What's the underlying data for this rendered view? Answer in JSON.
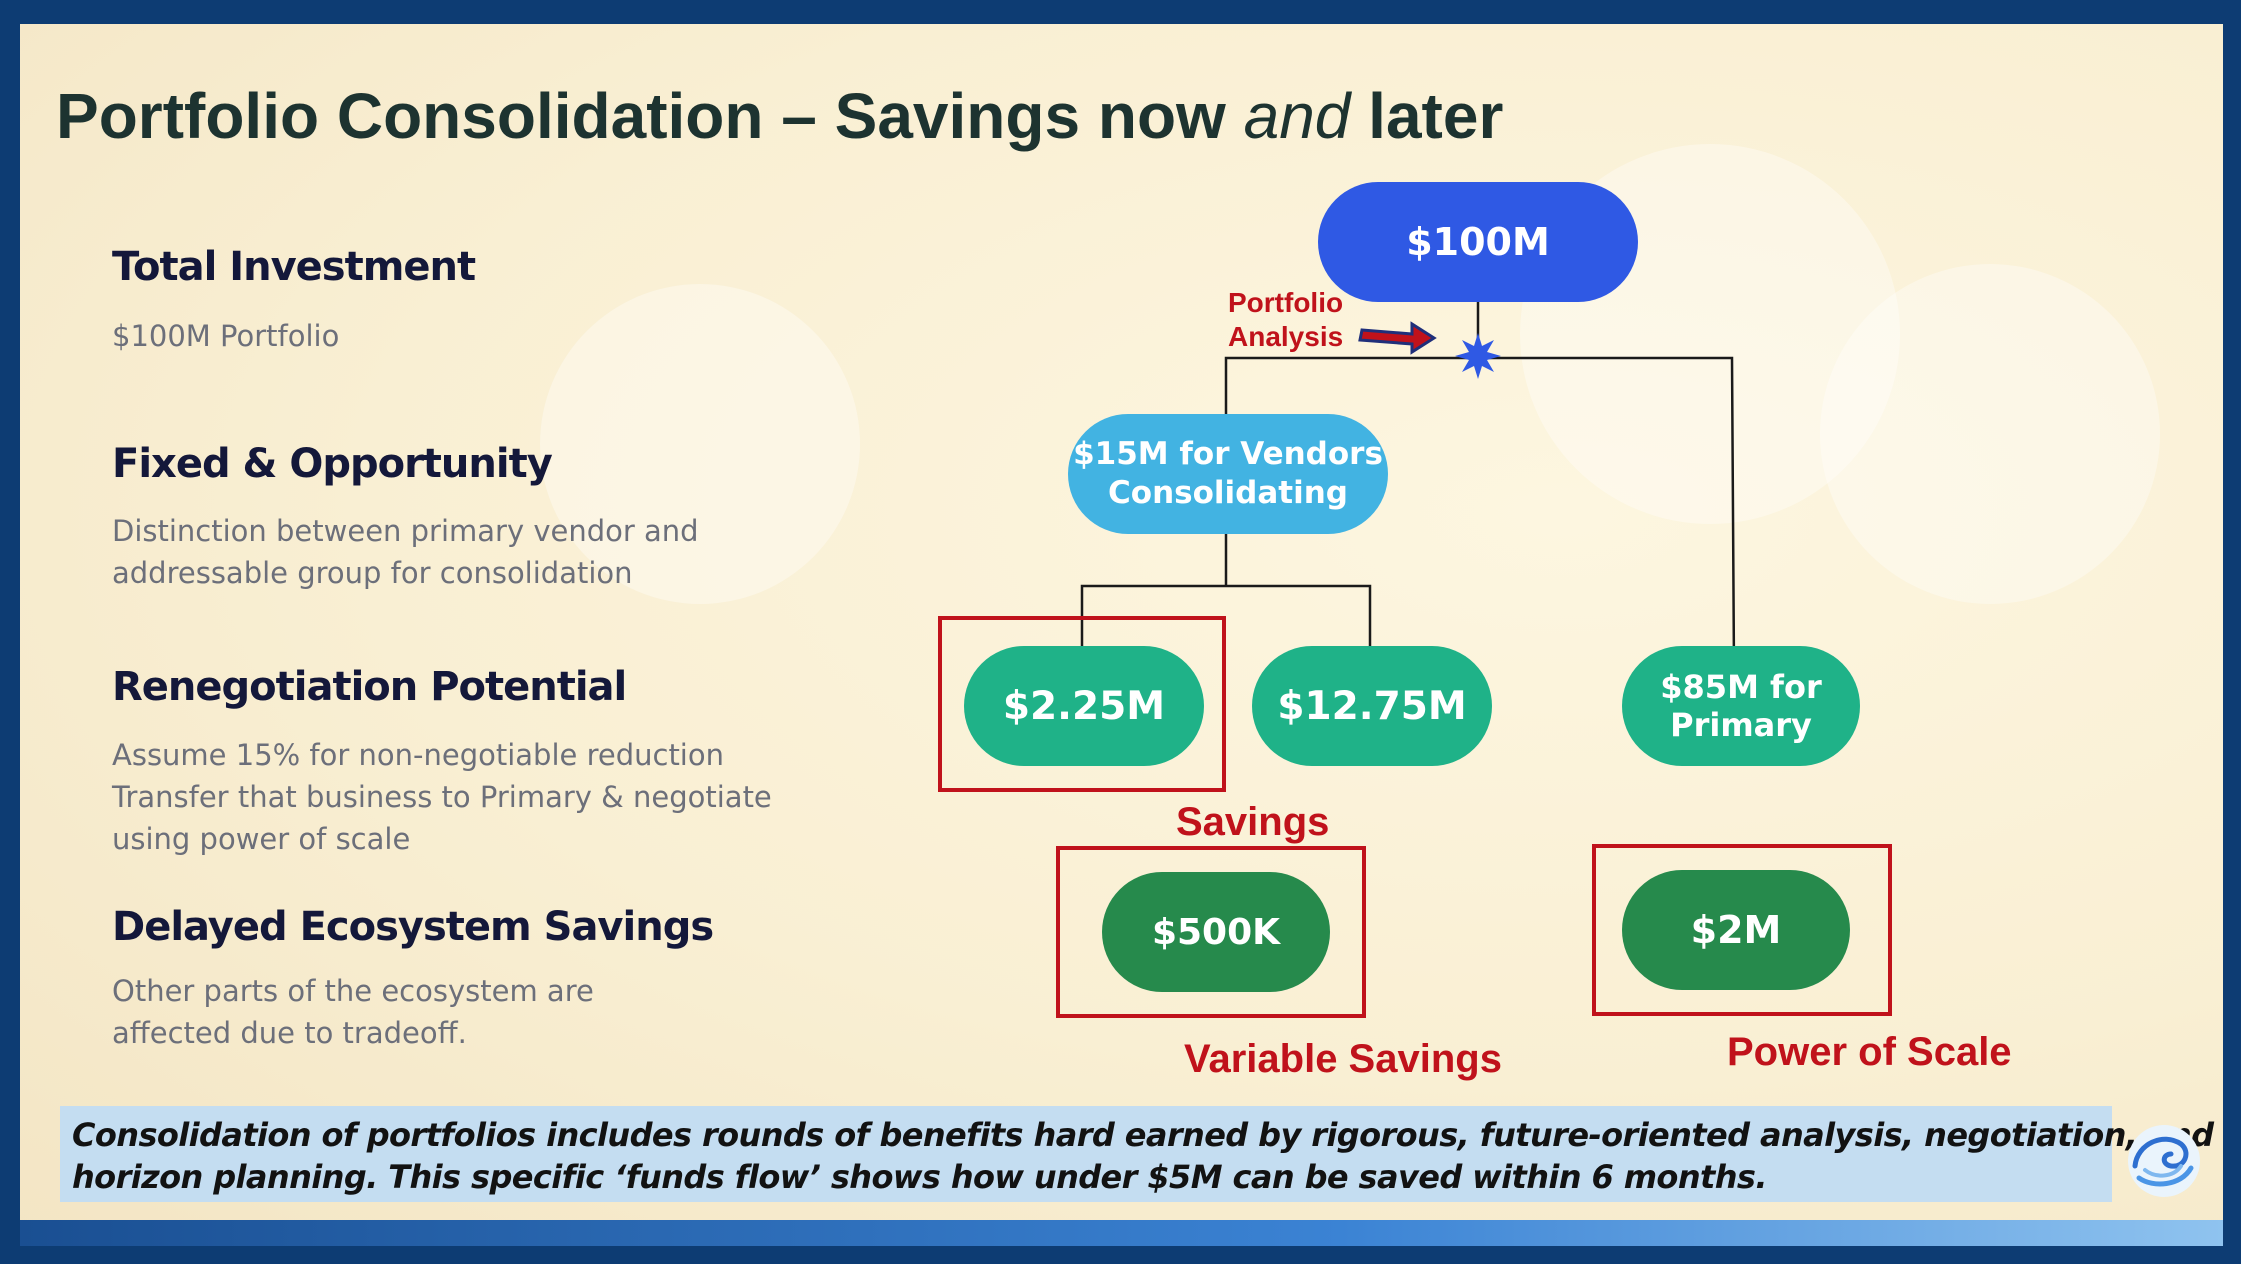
{
  "title": {
    "main": "Portfolio Consolidation – Savings now ",
    "emphasis": "and",
    "tail": " later"
  },
  "sections": [
    {
      "heading": "Total Investment",
      "lines": [
        "$100M Portfolio"
      ]
    },
    {
      "heading": "Fixed & Opportunity",
      "lines": [
        "Distinction between primary vendor and",
        "addressable group for consolidation"
      ]
    },
    {
      "heading": "Renegotiation Potential",
      "lines": [
        "Assume 15% for non-negotiable reduction",
        "Transfer that business to Primary & negotiate",
        "using power of scale"
      ]
    },
    {
      "heading": "Delayed Ecosystem Savings",
      "lines": [
        "Other parts of the ecosystem are",
        "affected due to tradeoff."
      ]
    }
  ],
  "diagram": {
    "nodes": {
      "root": "$100M",
      "vendors": "$15M for Vendors\nConsolidating",
      "savings_a": "$2.25M",
      "savings_b": "$12.75M",
      "primary": "$85M for\nPrimary",
      "variable": "$500K",
      "scale": "$2M"
    },
    "annotation": "Portfolio\nAnalysis",
    "labels": {
      "savings": "Savings",
      "variable_savings": "Variable Savings",
      "power_of_scale": "Power of Scale"
    },
    "colors": {
      "root": "#2f59e4",
      "vendors": "#42b3e2",
      "teal": "#1fb288",
      "green": "#268a4c",
      "red": "#c0121b"
    }
  },
  "banner": {
    "line1": "Consolidation of portfolios includes rounds of benefits hard earned by rigorous, future-oriented analysis, negotiation, and proper",
    "line2": "horizon planning. This specific ‘funds flow’ shows how under $5M can be saved within 6 months."
  },
  "logo_icon": "wave-swirl-icon"
}
